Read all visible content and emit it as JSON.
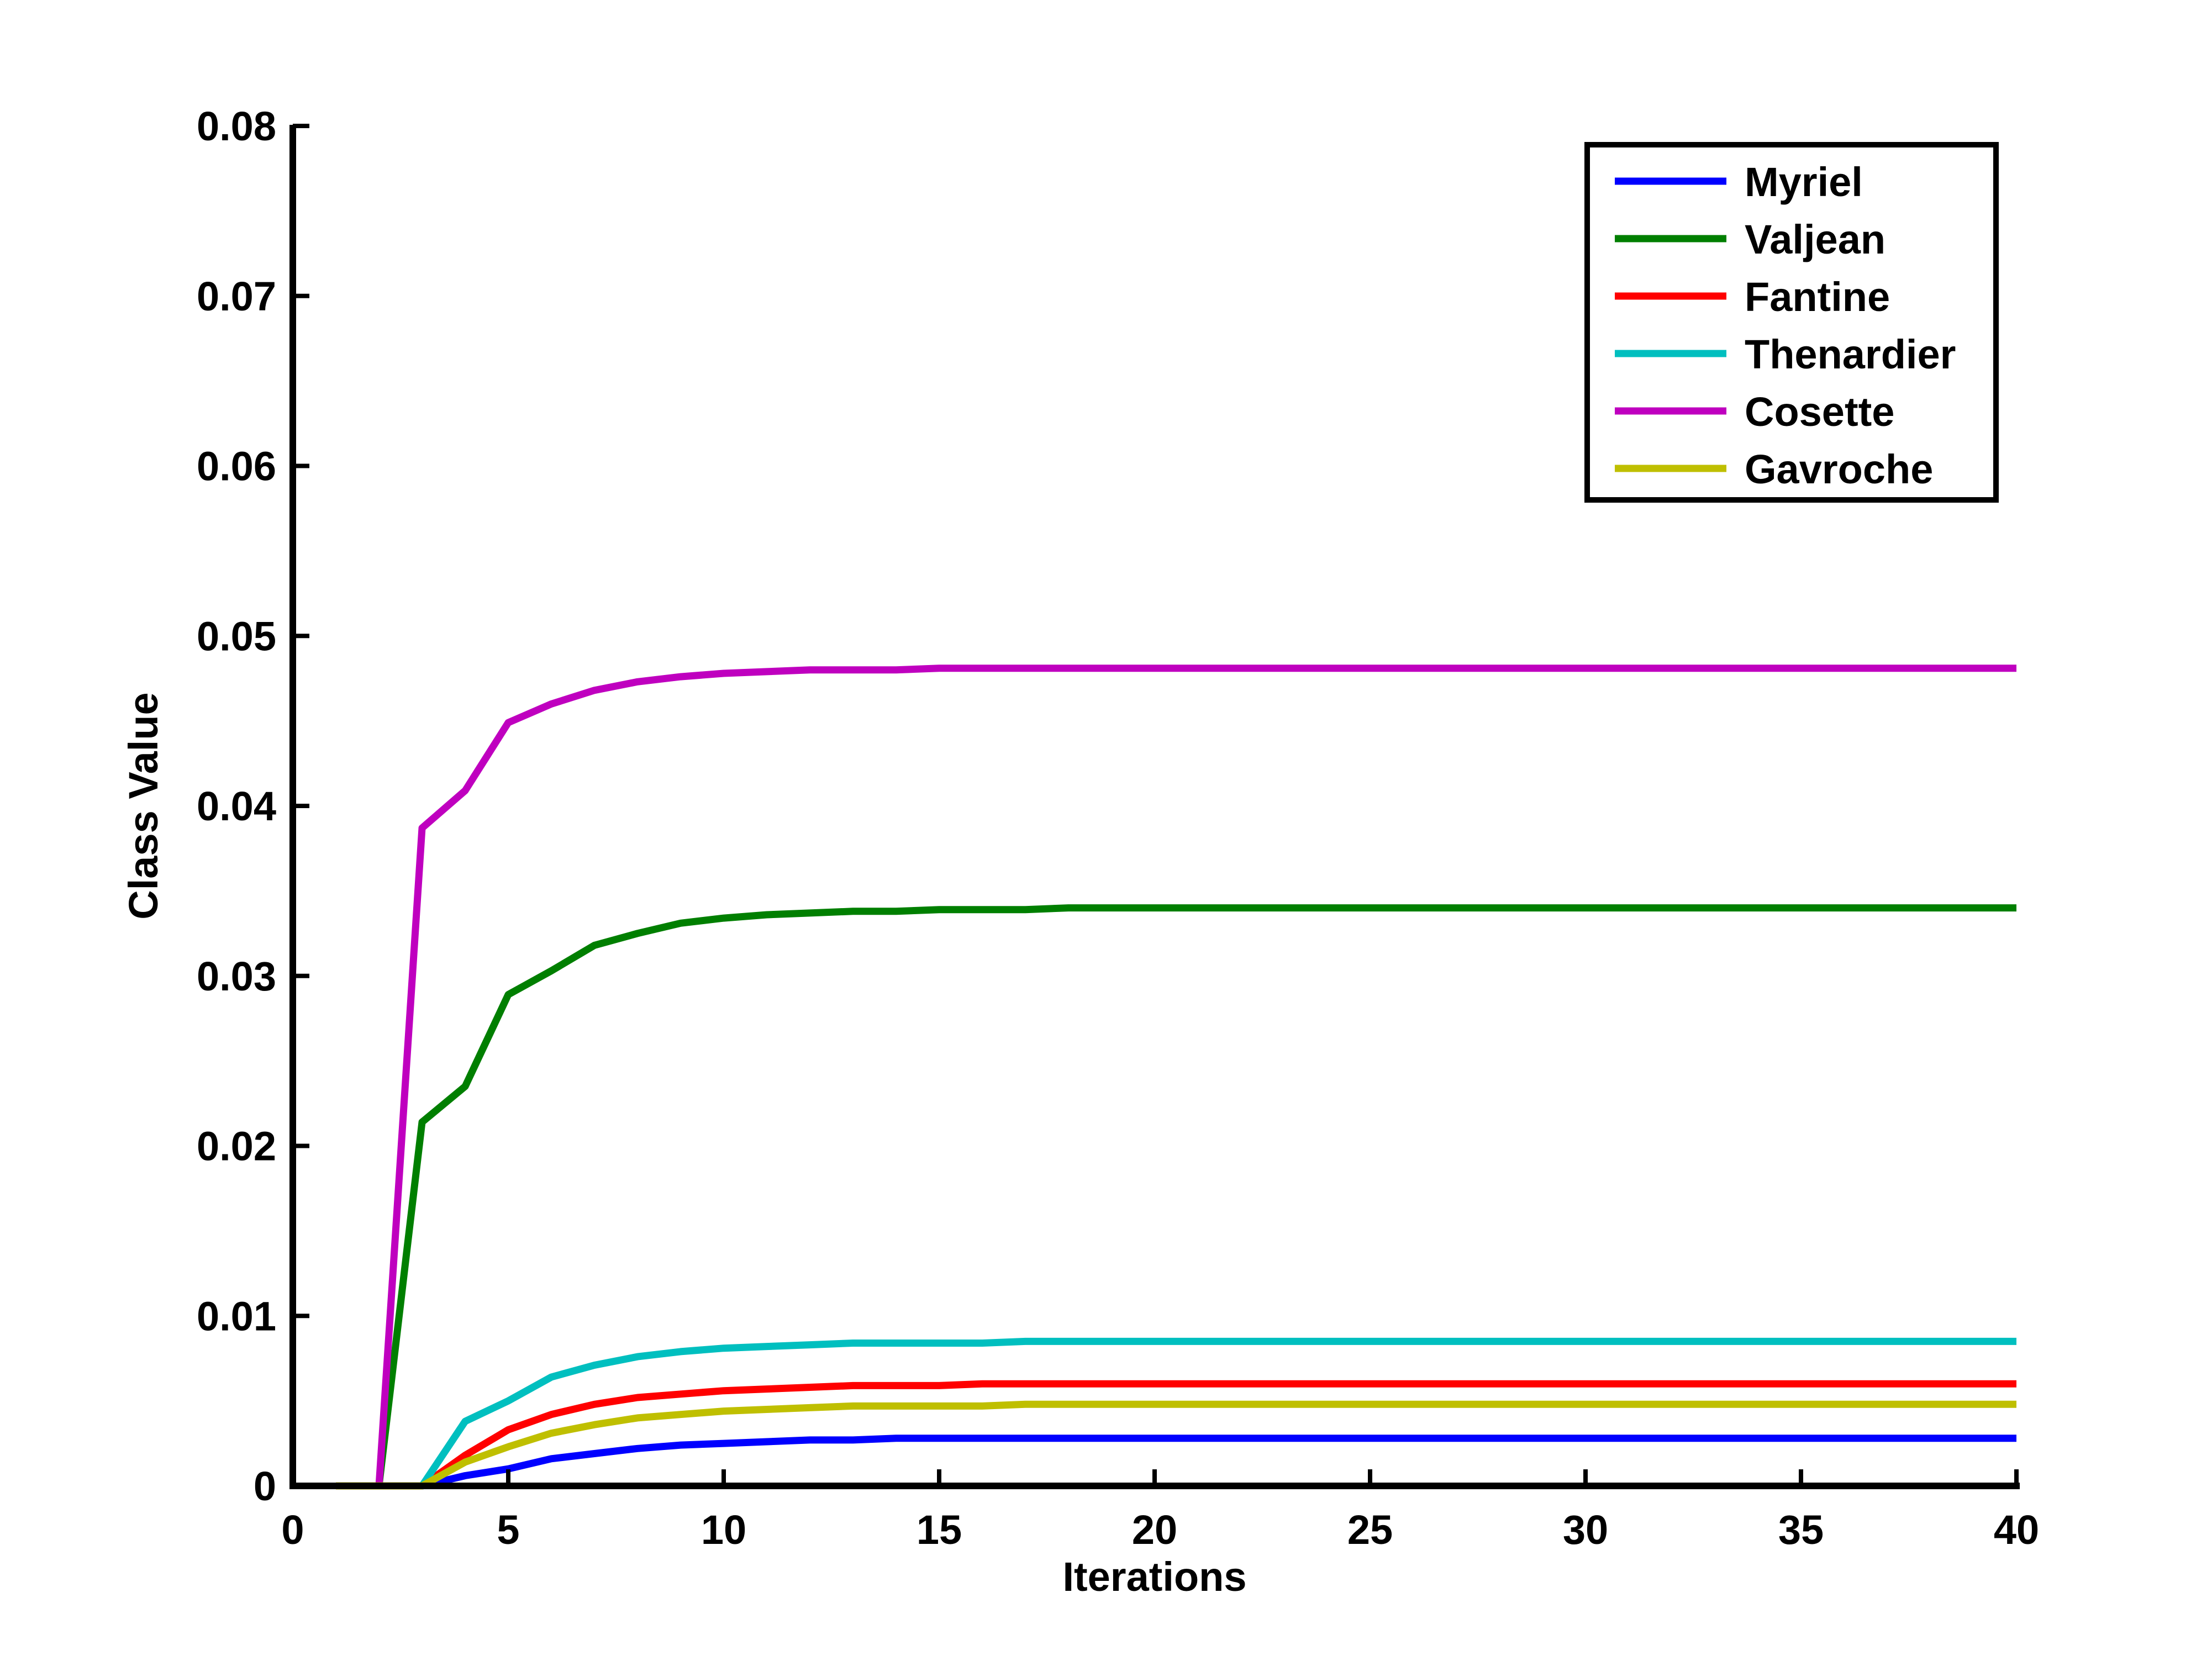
{
  "chart_data": {
    "type": "line",
    "title": "",
    "xlabel": "Iterations",
    "ylabel": "Class Value",
    "xlim": [
      0,
      40
    ],
    "ylim": [
      0,
      0.08
    ],
    "xticks": [
      0,
      5,
      10,
      15,
      20,
      25,
      30,
      35,
      40
    ],
    "xtick_labels": [
      "0",
      "5",
      "10",
      "15",
      "20",
      "25",
      "30",
      "35",
      "40"
    ],
    "yticks": [
      0,
      0.01,
      0.02,
      0.03,
      0.04,
      0.05,
      0.06,
      0.07,
      0.08
    ],
    "ytick_labels": [
      "0",
      "0.01",
      "0.02",
      "0.03",
      "0.04",
      "0.05",
      "0.06",
      "0.07",
      "0.08"
    ],
    "grid": false,
    "legend_position": "top-right",
    "x": [
      1,
      2,
      3,
      4,
      5,
      6,
      7,
      8,
      9,
      10,
      11,
      12,
      13,
      14,
      15,
      16,
      17,
      18,
      19,
      20,
      21,
      22,
      23,
      24,
      25,
      26,
      27,
      28,
      29,
      30,
      31,
      32,
      33,
      34,
      35,
      36,
      37,
      38,
      39,
      40
    ],
    "series": [
      {
        "name": "Myriel",
        "color": "#0000ff",
        "values": [
          0,
          0,
          0,
          0.0006,
          0.001,
          0.0016,
          0.0019,
          0.0022,
          0.0024,
          0.0025,
          0.0026,
          0.0027,
          0.0027,
          0.0028,
          0.0028,
          0.0028,
          0.0028,
          0.0028,
          0.0028,
          0.0028,
          0.0028,
          0.0028,
          0.0028,
          0.0028,
          0.0028,
          0.0028,
          0.0028,
          0.0028,
          0.0028,
          0.0028,
          0.0028,
          0.0028,
          0.0028,
          0.0028,
          0.0028,
          0.0028,
          0.0028,
          0.0028,
          0.0028,
          0.0028
        ]
      },
      {
        "name": "Valjean",
        "color": "#007f00",
        "values": [
          0,
          0,
          0.0214,
          0.0235,
          0.0289,
          0.0303,
          0.0318,
          0.0325,
          0.0331,
          0.0334,
          0.0336,
          0.0337,
          0.0338,
          0.0338,
          0.0339,
          0.0339,
          0.0339,
          0.034,
          0.034,
          0.034,
          0.034,
          0.034,
          0.034,
          0.034,
          0.034,
          0.034,
          0.034,
          0.034,
          0.034,
          0.034,
          0.034,
          0.034,
          0.034,
          0.034,
          0.034,
          0.034,
          0.034,
          0.034,
          0.034,
          0.034
        ]
      },
      {
        "name": "Fantine",
        "color": "#ff0000",
        "values": [
          0,
          0,
          0,
          0.0018,
          0.0033,
          0.0042,
          0.0048,
          0.0052,
          0.0054,
          0.0056,
          0.0057,
          0.0058,
          0.0059,
          0.0059,
          0.0059,
          0.006,
          0.006,
          0.006,
          0.006,
          0.006,
          0.006,
          0.006,
          0.006,
          0.006,
          0.006,
          0.006,
          0.006,
          0.006,
          0.006,
          0.006,
          0.006,
          0.006,
          0.006,
          0.006,
          0.006,
          0.006,
          0.006,
          0.006,
          0.006,
          0.006
        ]
      },
      {
        "name": "Thenardier",
        "color": "#00bfbf",
        "values": [
          0,
          0,
          0,
          0.0038,
          0.005,
          0.0064,
          0.0071,
          0.0076,
          0.0079,
          0.0081,
          0.0082,
          0.0083,
          0.0084,
          0.0084,
          0.0084,
          0.0084,
          0.0085,
          0.0085,
          0.0085,
          0.0085,
          0.0085,
          0.0085,
          0.0085,
          0.0085,
          0.0085,
          0.0085,
          0.0085,
          0.0085,
          0.0085,
          0.0085,
          0.0085,
          0.0085,
          0.0085,
          0.0085,
          0.0085,
          0.0085,
          0.0085,
          0.0085,
          0.0085,
          0.0085
        ]
      },
      {
        "name": "Cosette",
        "color": "#bf00bf",
        "values": [
          0,
          0,
          0.0387,
          0.0409,
          0.0449,
          0.046,
          0.0468,
          0.0473,
          0.0476,
          0.0478,
          0.0479,
          0.048,
          0.048,
          0.048,
          0.0481,
          0.0481,
          0.0481,
          0.0481,
          0.0481,
          0.0481,
          0.0481,
          0.0481,
          0.0481,
          0.0481,
          0.0481,
          0.0481,
          0.0481,
          0.0481,
          0.0481,
          0.0481,
          0.0481,
          0.0481,
          0.0481,
          0.0481,
          0.0481,
          0.0481,
          0.0481,
          0.0481,
          0.0481,
          0.0481
        ]
      },
      {
        "name": "Gavroche",
        "color": "#bfbf00",
        "values": [
          0,
          0,
          0,
          0.0014,
          0.0023,
          0.0031,
          0.0036,
          0.004,
          0.0042,
          0.0044,
          0.0045,
          0.0046,
          0.0047,
          0.0047,
          0.0047,
          0.0047,
          0.0048,
          0.0048,
          0.0048,
          0.0048,
          0.0048,
          0.0048,
          0.0048,
          0.0048,
          0.0048,
          0.0048,
          0.0048,
          0.0048,
          0.0048,
          0.0048,
          0.0048,
          0.0048,
          0.0048,
          0.0048,
          0.0048,
          0.0048,
          0.0048,
          0.0048,
          0.0048,
          0.0048
        ]
      }
    ]
  }
}
